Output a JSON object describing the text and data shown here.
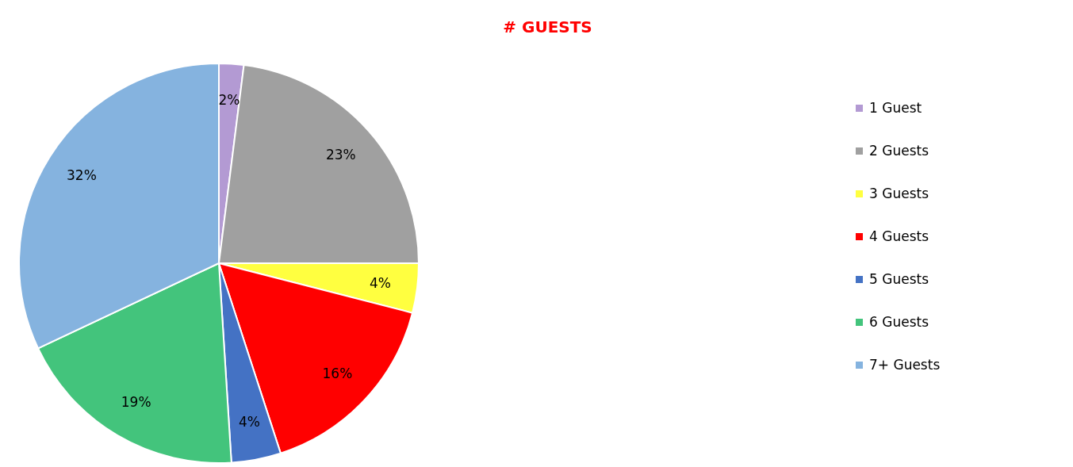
{
  "chart_data": {
    "type": "pie",
    "title": "# GUESTS",
    "categories": [
      "1 Guest",
      "2 Guests",
      "3 Guests",
      "4 Guests",
      "5 Guests",
      "6 Guests",
      "7+ Guests"
    ],
    "values": [
      2,
      23,
      4,
      16,
      4,
      19,
      32
    ],
    "colors": [
      "#b39ad3",
      "#a0a0a0",
      "#ffff40",
      "#ff0000",
      "#4472c4",
      "#43c47c",
      "#85b3df"
    ],
    "value_labels": [
      "2%",
      "23%",
      "4%",
      "16%",
      "4%",
      "19%",
      "32%"
    ],
    "legend": "right"
  }
}
